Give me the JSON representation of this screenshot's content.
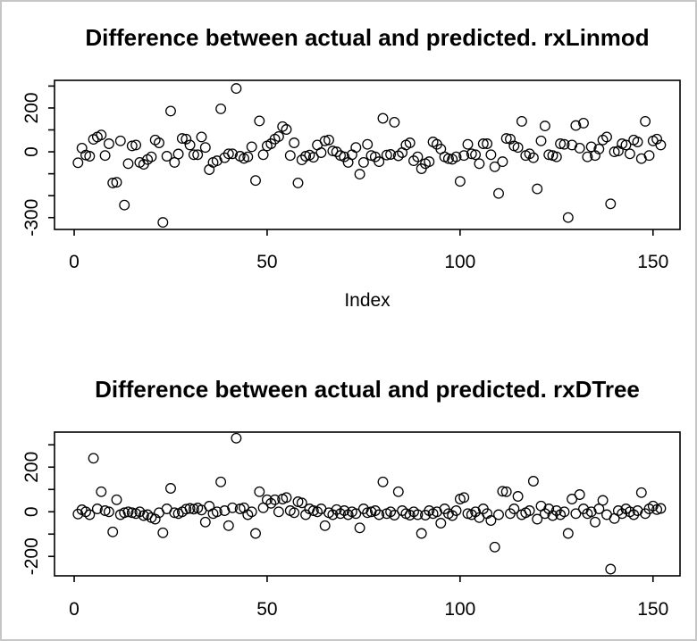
{
  "window": {
    "background": "#ffffff",
    "border_color": "#c6c6c6",
    "point_color": "#000000",
    "marker": "open-circle"
  },
  "chart_data": [
    {
      "type": "scatter",
      "title": "Difference between actual and predicted. rxLinmod",
      "xlabel": "Index",
      "ylabel": "",
      "grid": false,
      "legend": null,
      "marker": "open-circle",
      "x_is_index": true,
      "x_description": "Index 1..152",
      "x_ticks": [
        0,
        50,
        100,
        150
      ],
      "x_tick_labels": [
        "0",
        "50",
        "100",
        "150"
      ],
      "x_range": [
        -5.1,
        157
      ],
      "y_ticks": [
        300,
        200,
        100,
        0,
        -100,
        -200,
        -300
      ],
      "y_tick_labels": [
        "",
        "200",
        "",
        "0",
        "",
        "",
        "-300"
      ],
      "y_range": [
        -354,
        326
      ],
      "y": [
        -50,
        17,
        -15,
        -20,
        57,
        68,
        77,
        -17,
        37,
        -142,
        -139,
        50,
        -243,
        -54,
        27,
        31,
        -48,
        -57,
        -35,
        -23,
        54,
        41,
        -322,
        -20,
        186,
        -48,
        -10,
        61,
        58,
        31,
        -13,
        -13,
        68,
        20,
        -81,
        -48,
        -41,
        196,
        -27,
        -9,
        -9,
        289,
        -20,
        -30,
        -23,
        23,
        -131,
        141,
        -13,
        27,
        37,
        58,
        70,
        115,
        102,
        -17,
        41,
        -142,
        -37,
        -20,
        -15,
        -25,
        31,
        -4,
        50,
        54,
        4,
        0,
        -17,
        -23,
        -48,
        -13,
        20,
        -102,
        -48,
        34,
        -17,
        -23,
        -45,
        153,
        -15,
        -12,
        135,
        -18,
        -4,
        31,
        41,
        -41,
        -23,
        -77,
        -54,
        -45,
        45,
        34,
        13,
        -23,
        -31,
        -34,
        -23,
        -135,
        -17,
        34,
        -9,
        -13,
        -54,
        37,
        37,
        -13,
        -68,
        -190,
        -45,
        61,
        58,
        27,
        20,
        139,
        -17,
        -9,
        -27,
        -169,
        50,
        118,
        -13,
        -17,
        -23,
        37,
        34,
        -300,
        31,
        120,
        17,
        131,
        -23,
        23,
        -17,
        13,
        54,
        68,
        -237,
        0,
        4,
        37,
        31,
        -9,
        54,
        45,
        -31,
        139,
        -17,
        50,
        58,
        31
      ]
    },
    {
      "type": "scatter",
      "title": "Difference between actual and predicted. rxDTree",
      "xlabel": "",
      "ylabel": "",
      "grid": false,
      "legend": null,
      "marker": "open-circle",
      "x_is_index": true,
      "x_description": "Index 1..152",
      "x_ticks": [
        0,
        50,
        100,
        150
      ],
      "x_tick_labels": [
        "0",
        "50",
        "100",
        "150"
      ],
      "x_range": [
        -5.1,
        157
      ],
      "y_ticks": [
        300,
        200,
        100,
        0,
        -100,
        -200
      ],
      "y_tick_labels": [
        "",
        "200",
        "",
        "0",
        "",
        "-200"
      ],
      "y_range": [
        -287,
        357
      ],
      "y": [
        -10,
        9,
        0,
        -13,
        240,
        13,
        90,
        5,
        0,
        -90,
        54,
        -13,
        -4,
        0,
        -4,
        -8,
        0,
        -17,
        -13,
        -26,
        -33,
        -4,
        -94,
        13,
        105,
        -4,
        -8,
        0,
        12,
        15,
        12,
        17,
        8,
        -46,
        25,
        -8,
        0,
        134,
        5,
        -62,
        18,
        330,
        13,
        18,
        -13,
        0,
        -97,
        90,
        18,
        54,
        38,
        54,
        0,
        57,
        64,
        5,
        -4,
        45,
        40,
        -13,
        13,
        5,
        0,
        13,
        -62,
        -4,
        -13,
        10,
        -8,
        5,
        -13,
        0,
        -8,
        -72,
        13,
        -4,
        0,
        5,
        -13,
        134,
        -8,
        0,
        -15,
        90,
        5,
        -8,
        -15,
        0,
        -13,
        -97,
        -15,
        5,
        -8,
        0,
        -51,
        13,
        -8,
        -17,
        5,
        57,
        64,
        -8,
        -13,
        0,
        -26,
        13,
        -8,
        -39,
        -158,
        -13,
        92,
        90,
        -8,
        13,
        69,
        -13,
        -4,
        5,
        137,
        -33,
        26,
        -8,
        13,
        -17,
        5,
        -13,
        0,
        -97,
        57,
        -8,
        77,
        13,
        -8,
        0,
        -46,
        13,
        51,
        -13,
        -257,
        -30,
        5,
        -8,
        13,
        0,
        -13,
        5,
        86,
        -8,
        13,
        26,
        10,
        15
      ]
    }
  ]
}
